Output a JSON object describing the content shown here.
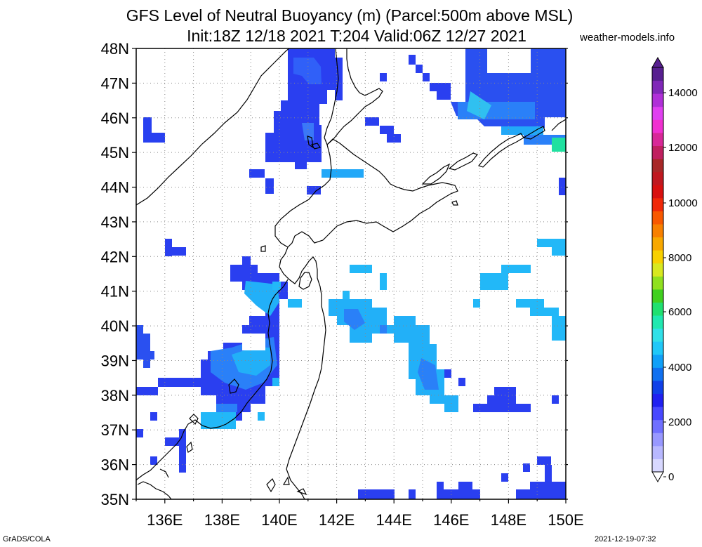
{
  "title_line1": "GFS Level of Neutral Buoyancy (m) (Parcel:500m above MSL)",
  "title_line2": "Init:18Z 12/18 2021 T:204 Valid:06Z 12/27 2021",
  "site": "weather-models.info",
  "footer_left": "GrADS/COLA",
  "footer_right": "2021-12-19-07:32",
  "lat_labels": [
    "48N",
    "47N",
    "46N",
    "45N",
    "44N",
    "43N",
    "42N",
    "41N",
    "40N",
    "39N",
    "38N",
    "37N",
    "36N",
    "35N"
  ],
  "lon_labels": [
    "136E",
    "138E",
    "140E",
    "142E",
    "144E",
    "146E",
    "148E",
    "150E"
  ],
  "colorbar": {
    "labels": [
      "14000",
      "12000",
      "10000",
      "8000",
      "6000",
      "4000",
      "2000",
      "0"
    ],
    "colors": [
      "#d8d8ff",
      "#b8b8ff",
      "#9898ff",
      "#7070ff",
      "#4848ff",
      "#2020f0",
      "#1040e8",
      "#1070f0",
      "#10a0f8",
      "#20c8f8",
      "#30e0e8",
      "#20e8b0",
      "#20e070",
      "#40d020",
      "#90e020",
      "#d8e820",
      "#f8d000",
      "#f8a800",
      "#f88000",
      "#f85800",
      "#f02808",
      "#d81010",
      "#c01820",
      "#a82828",
      "#c02060",
      "#d82898",
      "#f030d0",
      "#e040f0",
      "#b030d8",
      "#8028b8",
      "#582090"
    ]
  }
}
